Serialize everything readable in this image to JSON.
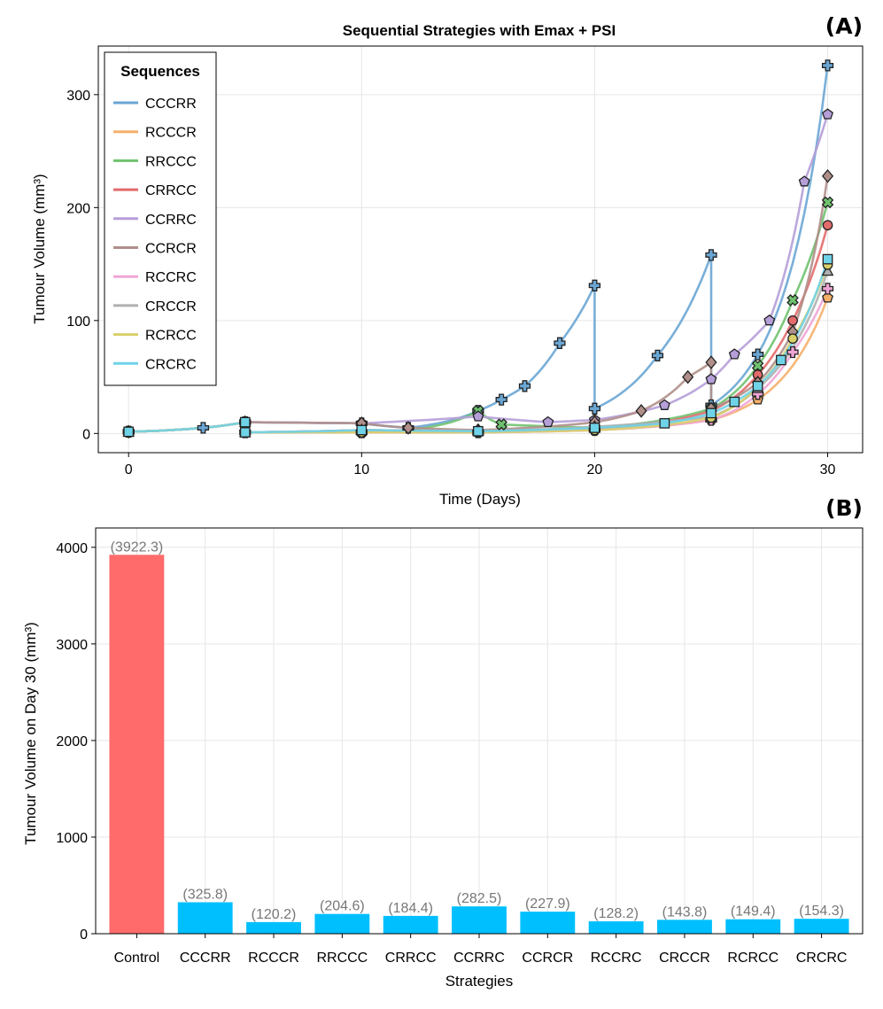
{
  "chart_data": [
    {
      "panel_label": "(A)",
      "type": "line",
      "title": "Sequential Strategies with Emax + PSI",
      "xlabel": "Time (Days)",
      "ylabel": "Tumour Volume (mm³)",
      "xlim": [
        -1.3,
        31.5
      ],
      "ylim": [
        -17,
        343
      ],
      "xticks": [
        0,
        10,
        20,
        30
      ],
      "yticks": [
        0,
        100,
        200,
        300
      ],
      "grid": true,
      "legend": {
        "title": "Sequences",
        "position": "top-left"
      },
      "series": [
        {
          "name": "CCCRR",
          "color": "#6aa6d4",
          "marker": "cross",
          "final": 325.8,
          "points": [
            [
              0,
              1.5
            ],
            [
              3.2,
              5
            ],
            [
              5,
              10
            ],
            [
              10,
              9
            ],
            [
              12,
              5
            ],
            [
              15,
              20
            ],
            [
              16,
              30
            ],
            [
              17,
              42
            ],
            [
              18.5,
              80
            ],
            [
              20,
              131
            ],
            [
              20,
              22
            ],
            [
              22.7,
              69
            ],
            [
              25,
              158
            ],
            [
              25,
              25
            ],
            [
              27,
              70
            ],
            [
              30,
              325.8
            ]
          ]
        },
        {
          "name": "RCCCR",
          "color": "#f5b06a",
          "marker": "pentagon",
          "final": 120.2,
          "points": [
            [
              0,
              1.5
            ],
            [
              5,
              10
            ],
            [
              5,
              1
            ],
            [
              10,
              1
            ],
            [
              15,
              1
            ],
            [
              20,
              3
            ],
            [
              25,
              12
            ],
            [
              27,
              30
            ],
            [
              30,
              120.2
            ]
          ]
        },
        {
          "name": "RRCCC",
          "color": "#6fc26f",
          "marker": "x",
          "final": 204.6,
          "points": [
            [
              0,
              1.5
            ],
            [
              5,
              10
            ],
            [
              5,
              1
            ],
            [
              10,
              1
            ],
            [
              15,
              20
            ],
            [
              16,
              8
            ],
            [
              20,
              5
            ],
            [
              25,
              22
            ],
            [
              27,
              60
            ],
            [
              28.5,
              118
            ],
            [
              30,
              204.6
            ]
          ]
        },
        {
          "name": "CRRCC",
          "color": "#e36b6b",
          "marker": "circle",
          "final": 184.4,
          "points": [
            [
              0,
              1.5
            ],
            [
              5,
              10
            ],
            [
              5,
              1
            ],
            [
              10,
              3
            ],
            [
              15,
              2
            ],
            [
              20,
              4
            ],
            [
              25,
              20
            ],
            [
              27,
              52
            ],
            [
              28.5,
              100
            ],
            [
              30,
              184.4
            ]
          ]
        },
        {
          "name": "CCRRC",
          "color": "#b59fd8",
          "marker": "pentagon",
          "final": 282.5,
          "points": [
            [
              0,
              1.5
            ],
            [
              5,
              10
            ],
            [
              10,
              9
            ],
            [
              15,
              15
            ],
            [
              18,
              10
            ],
            [
              20,
              12
            ],
            [
              23,
              25
            ],
            [
              25,
              48
            ],
            [
              26,
              70
            ],
            [
              27.5,
              100
            ],
            [
              29,
              223
            ],
            [
              30,
              282.5
            ]
          ]
        },
        {
          "name": "CCRCR",
          "color": "#b08f8a",
          "marker": "diamond",
          "final": 227.9,
          "points": [
            [
              0,
              1.5
            ],
            [
              5,
              10
            ],
            [
              10,
              9
            ],
            [
              12,
              5
            ],
            [
              15,
              3
            ],
            [
              20,
              10
            ],
            [
              22,
              20
            ],
            [
              24,
              50
            ],
            [
              25,
              63
            ],
            [
              25,
              22
            ],
            [
              27,
              45
            ],
            [
              28.5,
              90
            ],
            [
              30,
              227.9
            ]
          ]
        },
        {
          "name": "RCCRC",
          "color": "#f0a5d6",
          "marker": "plus",
          "final": 128.2,
          "points": [
            [
              0,
              1.5
            ],
            [
              5,
              10
            ],
            [
              5,
              1
            ],
            [
              10,
              1
            ],
            [
              15,
              1
            ],
            [
              20,
              3
            ],
            [
              25,
              12
            ],
            [
              27,
              35
            ],
            [
              28.5,
              72
            ],
            [
              30,
              128.2
            ]
          ]
        },
        {
          "name": "CRCCR",
          "color": "#b0b0b0",
          "marker": "triangle",
          "final": 143.8,
          "points": [
            [
              0,
              1.5
            ],
            [
              5,
              10
            ],
            [
              5,
              1
            ],
            [
              10,
              3
            ],
            [
              15,
              2
            ],
            [
              20,
              6
            ],
            [
              25,
              15
            ],
            [
              27,
              40
            ],
            [
              30,
              143.8
            ]
          ]
        },
        {
          "name": "RCRCC",
          "color": "#d9cf6a",
          "marker": "circle",
          "final": 149.4,
          "points": [
            [
              0,
              1.5
            ],
            [
              5,
              10
            ],
            [
              5,
              1
            ],
            [
              10,
              1
            ],
            [
              15,
              1
            ],
            [
              20,
              3
            ],
            [
              25,
              14
            ],
            [
              27,
              42
            ],
            [
              28.5,
              84
            ],
            [
              30,
              149.4
            ]
          ]
        },
        {
          "name": "CRCRC",
          "color": "#6fd3e8",
          "marker": "square",
          "final": 154.3,
          "points": [
            [
              0,
              1.5
            ],
            [
              5,
              10
            ],
            [
              5,
              1
            ],
            [
              10,
              3
            ],
            [
              15,
              2
            ],
            [
              20,
              5
            ],
            [
              23,
              9
            ],
            [
              25,
              18
            ],
            [
              26,
              28
            ],
            [
              27,
              42
            ],
            [
              28,
              65
            ],
            [
              30,
              154.3
            ]
          ]
        }
      ]
    },
    {
      "panel_label": "(B)",
      "type": "bar",
      "xlabel": "Strategies",
      "ylabel": "Tumour Volume on Day 30 (mm³)",
      "ylim": [
        0,
        4200
      ],
      "yticks": [
        0,
        1000,
        2000,
        3000,
        4000
      ],
      "grid": true,
      "categories": [
        "Control",
        "CCCRR",
        "RCCCR",
        "RRCCC",
        "CRRCC",
        "CCRRC",
        "CCRCR",
        "RCCRC",
        "CRCCR",
        "RCRCC",
        "CRCRC"
      ],
      "values": [
        3922.3,
        325.8,
        120.2,
        204.6,
        184.4,
        282.5,
        227.9,
        128.2,
        143.8,
        149.4,
        154.3
      ],
      "value_labels": [
        "(3922.3)",
        "(325.8)",
        "(120.2)",
        "(204.6)",
        "(184.4)",
        "(282.5)",
        "(227.9)",
        "(128.2)",
        "(143.8)",
        "(149.4)",
        "(154.3)"
      ],
      "colors": {
        "control": "#ff6b6b",
        "strategy": "#00bfff"
      }
    }
  ]
}
